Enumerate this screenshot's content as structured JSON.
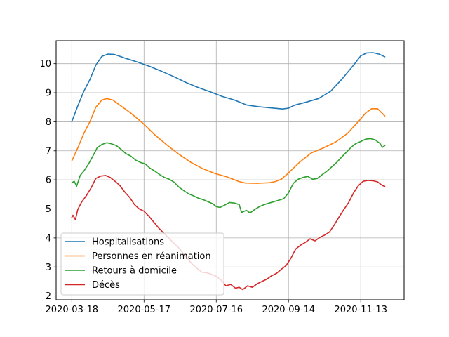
{
  "chart_data": {
    "type": "line",
    "title": "",
    "xlabel": "",
    "ylabel": "",
    "x_axis": {
      "start": "2020-03-18",
      "end": "2020-12-06",
      "ticks": [
        "2020-03-18",
        "2020-05-17",
        "2020-07-16",
        "2020-09-14",
        "2020-11-13"
      ]
    },
    "ylim": [
      1.87,
      10.79
    ],
    "y_ticks": [
      2,
      3,
      4,
      5,
      6,
      7,
      8,
      9,
      10
    ],
    "grid": true,
    "legend_position": "lower-left",
    "series": [
      {
        "name": "Hospitalisations",
        "color": "#1f77b4",
        "points": [
          [
            "2020-03-18",
            8.0
          ],
          [
            "2020-03-23",
            8.55
          ],
          [
            "2020-03-28",
            9.05
          ],
          [
            "2020-04-02",
            9.45
          ],
          [
            "2020-04-07",
            9.95
          ],
          [
            "2020-04-12",
            10.25
          ],
          [
            "2020-04-17",
            10.33
          ],
          [
            "2020-04-22",
            10.32
          ],
          [
            "2020-04-27",
            10.25
          ],
          [
            "2020-05-02",
            10.18
          ],
          [
            "2020-05-12",
            10.05
          ],
          [
            "2020-05-22",
            9.9
          ],
          [
            "2020-06-01",
            9.73
          ],
          [
            "2020-06-11",
            9.55
          ],
          [
            "2020-06-21",
            9.35
          ],
          [
            "2020-07-01",
            9.18
          ],
          [
            "2020-07-11",
            9.03
          ],
          [
            "2020-07-21",
            8.87
          ],
          [
            "2020-07-31",
            8.75
          ],
          [
            "2020-08-10",
            8.58
          ],
          [
            "2020-08-20",
            8.52
          ],
          [
            "2020-08-30",
            8.48
          ],
          [
            "2020-09-09",
            8.44
          ],
          [
            "2020-09-14",
            8.47
          ],
          [
            "2020-09-19",
            8.57
          ],
          [
            "2020-09-29",
            8.68
          ],
          [
            "2020-10-09",
            8.8
          ],
          [
            "2020-10-19",
            9.05
          ],
          [
            "2020-10-29",
            9.5
          ],
          [
            "2020-11-08",
            10.0
          ],
          [
            "2020-11-13",
            10.27
          ],
          [
            "2020-11-18",
            10.37
          ],
          [
            "2020-11-23",
            10.38
          ],
          [
            "2020-11-28",
            10.33
          ],
          [
            "2020-12-03",
            10.24
          ]
        ]
      },
      {
        "name": "Personnes en réanimation",
        "color": "#ff7f0e",
        "points": [
          [
            "2020-03-18",
            6.65
          ],
          [
            "2020-03-23",
            7.1
          ],
          [
            "2020-03-28",
            7.6
          ],
          [
            "2020-04-02",
            8.0
          ],
          [
            "2020-04-07",
            8.5
          ],
          [
            "2020-04-12",
            8.75
          ],
          [
            "2020-04-16",
            8.8
          ],
          [
            "2020-04-21",
            8.75
          ],
          [
            "2020-04-26",
            8.6
          ],
          [
            "2020-05-06",
            8.3
          ],
          [
            "2020-05-16",
            7.95
          ],
          [
            "2020-05-26",
            7.55
          ],
          [
            "2020-06-05",
            7.2
          ],
          [
            "2020-06-15",
            6.88
          ],
          [
            "2020-06-25",
            6.6
          ],
          [
            "2020-07-05",
            6.38
          ],
          [
            "2020-07-15",
            6.22
          ],
          [
            "2020-07-25",
            6.1
          ],
          [
            "2020-08-04",
            5.94
          ],
          [
            "2020-08-09",
            5.89
          ],
          [
            "2020-08-19",
            5.88
          ],
          [
            "2020-08-29",
            5.9
          ],
          [
            "2020-09-03",
            5.94
          ],
          [
            "2020-09-08",
            6.02
          ],
          [
            "2020-09-13",
            6.2
          ],
          [
            "2020-09-23",
            6.6
          ],
          [
            "2020-10-03",
            6.93
          ],
          [
            "2020-10-13",
            7.1
          ],
          [
            "2020-10-23",
            7.3
          ],
          [
            "2020-11-02",
            7.6
          ],
          [
            "2020-11-12",
            8.05
          ],
          [
            "2020-11-17",
            8.3
          ],
          [
            "2020-11-22",
            8.45
          ],
          [
            "2020-11-27",
            8.45
          ],
          [
            "2020-12-03",
            8.2
          ]
        ]
      },
      {
        "name": "Retours à domicile",
        "color": "#2ca02c",
        "points": [
          [
            "2020-03-18",
            5.9
          ],
          [
            "2020-03-20",
            5.95
          ],
          [
            "2020-03-22",
            5.78
          ],
          [
            "2020-03-25",
            6.15
          ],
          [
            "2020-03-28",
            6.3
          ],
          [
            "2020-04-01",
            6.55
          ],
          [
            "2020-04-04",
            6.78
          ],
          [
            "2020-04-08",
            7.1
          ],
          [
            "2020-04-12",
            7.22
          ],
          [
            "2020-04-16",
            7.28
          ],
          [
            "2020-04-20",
            7.24
          ],
          [
            "2020-04-24",
            7.18
          ],
          [
            "2020-04-28",
            7.05
          ],
          [
            "2020-05-02",
            6.9
          ],
          [
            "2020-05-06",
            6.82
          ],
          [
            "2020-05-10",
            6.68
          ],
          [
            "2020-05-14",
            6.6
          ],
          [
            "2020-05-18",
            6.55
          ],
          [
            "2020-05-22",
            6.4
          ],
          [
            "2020-05-26",
            6.3
          ],
          [
            "2020-05-30",
            6.18
          ],
          [
            "2020-06-03",
            6.08
          ],
          [
            "2020-06-07",
            6.02
          ],
          [
            "2020-06-11",
            5.92
          ],
          [
            "2020-06-15",
            5.75
          ],
          [
            "2020-06-19",
            5.63
          ],
          [
            "2020-06-23",
            5.52
          ],
          [
            "2020-06-27",
            5.45
          ],
          [
            "2020-07-01",
            5.37
          ],
          [
            "2020-07-05",
            5.32
          ],
          [
            "2020-07-09",
            5.25
          ],
          [
            "2020-07-13",
            5.18
          ],
          [
            "2020-07-16",
            5.08
          ],
          [
            "2020-07-19",
            5.05
          ],
          [
            "2020-07-23",
            5.13
          ],
          [
            "2020-07-27",
            5.22
          ],
          [
            "2020-07-31",
            5.2
          ],
          [
            "2020-08-04",
            5.15
          ],
          [
            "2020-08-06",
            4.88
          ],
          [
            "2020-08-10",
            4.95
          ],
          [
            "2020-08-13",
            4.86
          ],
          [
            "2020-08-17",
            4.98
          ],
          [
            "2020-08-21",
            5.08
          ],
          [
            "2020-08-25",
            5.15
          ],
          [
            "2020-08-29",
            5.2
          ],
          [
            "2020-09-02",
            5.25
          ],
          [
            "2020-09-06",
            5.3
          ],
          [
            "2020-09-10",
            5.35
          ],
          [
            "2020-09-14",
            5.55
          ],
          [
            "2020-09-18",
            5.88
          ],
          [
            "2020-09-22",
            6.02
          ],
          [
            "2020-09-26",
            6.08
          ],
          [
            "2020-09-30",
            6.12
          ],
          [
            "2020-10-04",
            6.02
          ],
          [
            "2020-10-08",
            6.05
          ],
          [
            "2020-10-12",
            6.18
          ],
          [
            "2020-10-16",
            6.3
          ],
          [
            "2020-10-20",
            6.45
          ],
          [
            "2020-10-24",
            6.6
          ],
          [
            "2020-10-28",
            6.78
          ],
          [
            "2020-11-01",
            6.95
          ],
          [
            "2020-11-05",
            7.12
          ],
          [
            "2020-11-09",
            7.25
          ],
          [
            "2020-11-13",
            7.32
          ],
          [
            "2020-11-17",
            7.4
          ],
          [
            "2020-11-21",
            7.42
          ],
          [
            "2020-11-25",
            7.38
          ],
          [
            "2020-11-29",
            7.25
          ],
          [
            "2020-12-01",
            7.12
          ],
          [
            "2020-12-03",
            7.18
          ]
        ]
      },
      {
        "name": "Décès",
        "color": "#d62728",
        "points": [
          [
            "2020-03-18",
            4.7
          ],
          [
            "2020-03-19",
            4.78
          ],
          [
            "2020-03-21",
            4.63
          ],
          [
            "2020-03-23",
            4.98
          ],
          [
            "2020-03-26",
            5.22
          ],
          [
            "2020-03-30",
            5.45
          ],
          [
            "2020-04-03",
            5.72
          ],
          [
            "2020-04-07",
            6.05
          ],
          [
            "2020-04-11",
            6.13
          ],
          [
            "2020-04-15",
            6.15
          ],
          [
            "2020-04-19",
            6.08
          ],
          [
            "2020-04-23",
            5.95
          ],
          [
            "2020-04-27",
            5.8
          ],
          [
            "2020-05-01",
            5.58
          ],
          [
            "2020-05-05",
            5.4
          ],
          [
            "2020-05-09",
            5.15
          ],
          [
            "2020-05-13",
            5.0
          ],
          [
            "2020-05-17",
            4.92
          ],
          [
            "2020-05-21",
            4.75
          ],
          [
            "2020-05-25",
            4.55
          ],
          [
            "2020-05-29",
            4.35
          ],
          [
            "2020-06-02",
            4.18
          ],
          [
            "2020-06-06",
            4.02
          ],
          [
            "2020-06-10",
            3.85
          ],
          [
            "2020-06-14",
            3.7
          ],
          [
            "2020-06-18",
            3.5
          ],
          [
            "2020-06-22",
            3.3
          ],
          [
            "2020-06-26",
            3.1
          ],
          [
            "2020-06-30",
            2.95
          ],
          [
            "2020-07-04",
            2.82
          ],
          [
            "2020-07-08",
            2.8
          ],
          [
            "2020-07-12",
            2.75
          ],
          [
            "2020-07-16",
            2.68
          ],
          [
            "2020-07-20",
            2.55
          ],
          [
            "2020-07-24",
            2.35
          ],
          [
            "2020-07-28",
            2.4
          ],
          [
            "2020-08-01",
            2.27
          ],
          [
            "2020-08-04",
            2.3
          ],
          [
            "2020-08-07",
            2.22
          ],
          [
            "2020-08-11",
            2.35
          ],
          [
            "2020-08-15",
            2.3
          ],
          [
            "2020-08-19",
            2.42
          ],
          [
            "2020-08-23",
            2.5
          ],
          [
            "2020-08-27",
            2.58
          ],
          [
            "2020-08-31",
            2.7
          ],
          [
            "2020-09-04",
            2.78
          ],
          [
            "2020-09-08",
            2.92
          ],
          [
            "2020-09-12",
            3.05
          ],
          [
            "2020-09-16",
            3.3
          ],
          [
            "2020-09-20",
            3.62
          ],
          [
            "2020-09-24",
            3.75
          ],
          [
            "2020-09-28",
            3.85
          ],
          [
            "2020-10-02",
            3.97
          ],
          [
            "2020-10-06",
            3.9
          ],
          [
            "2020-10-10",
            4.02
          ],
          [
            "2020-10-14",
            4.1
          ],
          [
            "2020-10-18",
            4.2
          ],
          [
            "2020-10-22",
            4.45
          ],
          [
            "2020-10-26",
            4.72
          ],
          [
            "2020-10-30",
            4.98
          ],
          [
            "2020-11-03",
            5.22
          ],
          [
            "2020-11-07",
            5.55
          ],
          [
            "2020-11-11",
            5.8
          ],
          [
            "2020-11-15",
            5.95
          ],
          [
            "2020-11-19",
            5.98
          ],
          [
            "2020-11-23",
            5.97
          ],
          [
            "2020-11-27",
            5.93
          ],
          [
            "2020-12-01",
            5.8
          ],
          [
            "2020-12-03",
            5.78
          ]
        ]
      }
    ]
  }
}
